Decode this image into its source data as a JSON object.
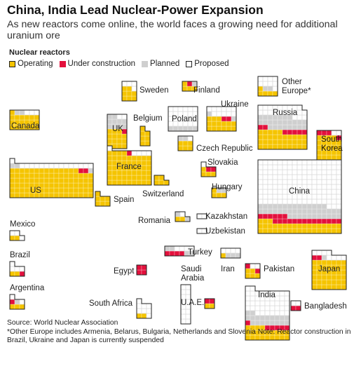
{
  "title": "China, India Lead Nuclear-Power Expansion",
  "subtitle": "As new reactors come online, the world faces a growing need for additional uranium ore",
  "legend": {
    "title": "Nuclear reactors",
    "items": [
      {
        "label": "Operating",
        "color": "#f5c400"
      },
      {
        "label": "Under construction",
        "color": "#e3103c"
      },
      {
        "label": "Planned",
        "color": "#cfcfcf"
      },
      {
        "label": "Proposed",
        "color": "#ffffff"
      }
    ]
  },
  "chart_data": {
    "type": "unit-grid cartogram",
    "unit": "1 square = 1 reactor",
    "categories": [
      "Operating",
      "Under construction",
      "Planned",
      "Proposed"
    ],
    "countries": [
      {
        "name": "US",
        "operating": 99,
        "construction": 2,
        "planned": 3,
        "proposed": 16
      },
      {
        "name": "Canada",
        "operating": 19,
        "construction": 0,
        "planned": 2,
        "proposed": 3
      },
      {
        "name": "Mexico",
        "operating": 2,
        "construction": 0,
        "planned": 0,
        "proposed": 3
      },
      {
        "name": "Brazil",
        "operating": 2,
        "construction": 1,
        "planned": 0,
        "proposed": 4
      },
      {
        "name": "Argentina",
        "operating": 3,
        "construction": 1,
        "planned": 1,
        "proposed": 2
      },
      {
        "name": "UK",
        "operating": 15,
        "construction": 1,
        "planned": 10,
        "proposed": 2
      },
      {
        "name": "Sweden",
        "operating": 8,
        "construction": 0,
        "planned": 0,
        "proposed": 4
      },
      {
        "name": "Finland",
        "operating": 4,
        "construction": 1,
        "planned": 1,
        "proposed": 0
      },
      {
        "name": "Belgium",
        "operating": 7,
        "construction": 0,
        "planned": 0,
        "proposed": 0
      },
      {
        "name": "France",
        "operating": 58,
        "construction": 1,
        "planned": 0,
        "proposed": 5
      },
      {
        "name": "Spain",
        "operating": 7,
        "construction": 0,
        "planned": 0,
        "proposed": 0
      },
      {
        "name": "Switzerland",
        "operating": 5,
        "construction": 0,
        "planned": 0,
        "proposed": 0
      },
      {
        "name": "Poland",
        "operating": 0,
        "construction": 0,
        "planned": 6,
        "proposed": 24
      },
      {
        "name": "Ukraine",
        "operating": 15,
        "construction": 2,
        "planned": 2,
        "proposed": 11
      },
      {
        "name": "Czech Republic",
        "operating": 6,
        "construction": 0,
        "planned": 2,
        "proposed": 1
      },
      {
        "name": "Slovakia",
        "operating": 4,
        "construction": 2,
        "planned": 0,
        "proposed": 1
      },
      {
        "name": "Hungary",
        "operating": 4,
        "construction": 0,
        "planned": 2,
        "proposed": 0
      },
      {
        "name": "Romania",
        "operating": 2,
        "construction": 0,
        "planned": 2,
        "proposed": 1
      },
      {
        "name": "Kazakhstan",
        "operating": 0,
        "construction": 0,
        "planned": 0,
        "proposed": 2
      },
      {
        "name": "Uzbekistan",
        "operating": 0,
        "construction": 0,
        "planned": 0,
        "proposed": 2
      },
      {
        "name": "Other Europe*",
        "operating": 5,
        "construction": 0,
        "planned": 2,
        "proposed": 9
      },
      {
        "name": "Russia",
        "operating": 35,
        "construction": 7,
        "planned": 25,
        "proposed": 22
      },
      {
        "name": "South Korea",
        "operating": 24,
        "construction": 4,
        "planned": 0,
        "proposed": 2
      },
      {
        "name": "China",
        "operating": 37,
        "construction": 20,
        "planned": 42,
        "proposed": 156
      },
      {
        "name": "Japan",
        "operating": 42,
        "construction": 2,
        "planned": 1,
        "proposed": 8
      },
      {
        "name": "India",
        "operating": 22,
        "construction": 6,
        "planned": 19,
        "proposed": 45
      },
      {
        "name": "Pakistan",
        "operating": 5,
        "construction": 2,
        "planned": 0,
        "proposed": 2
      },
      {
        "name": "Bangladesh",
        "operating": 0,
        "construction": 2,
        "planned": 0,
        "proposed": 2
      },
      {
        "name": "Turkey",
        "operating": 0,
        "construction": 4,
        "planned": 4,
        "proposed": 4
      },
      {
        "name": "Egypt",
        "operating": 0,
        "construction": 4,
        "planned": 0,
        "proposed": 0
      },
      {
        "name": "Iran",
        "operating": 1,
        "construction": 0,
        "planned": 3,
        "proposed": 4
      },
      {
        "name": "Saudi Arabia",
        "operating": 0,
        "construction": 0,
        "planned": 0,
        "proposed": 16
      },
      {
        "name": "U.A.E.",
        "operating": 2,
        "construction": 2,
        "planned": 0,
        "proposed": 0
      },
      {
        "name": "South Africa",
        "operating": 2,
        "construction": 0,
        "planned": 0,
        "proposed": 8
      }
    ]
  },
  "source": "Source: World Nuclear Association",
  "note": "*Other Europe includes Armenia, Belarus, Bulgaria, Netherlands and Slovenia Note: Reactor construction in Brazil, Ukraine and Japan is currently suspended"
}
